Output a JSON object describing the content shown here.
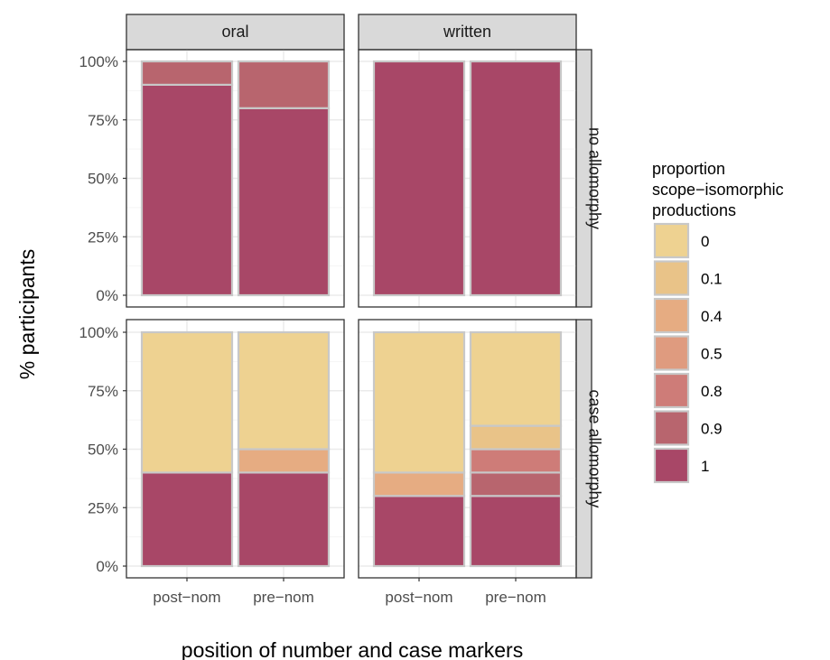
{
  "chart_data": {
    "type": "bar",
    "stacked": true,
    "ylabel": "% participants",
    "xlabel": "position of number and case markers",
    "categories": [
      "post−nom",
      "pre−nom"
    ],
    "y_ticks": [
      "0%",
      "25%",
      "50%",
      "75%",
      "100%"
    ],
    "ylim": [
      0,
      1
    ],
    "column_facets": [
      "oral",
      "written"
    ],
    "row_facets": [
      "no allomorphy",
      "case allomorphy"
    ],
    "legend": {
      "title": [
        "proportion",
        "scope−isomorphic",
        "productions"
      ],
      "position": "right",
      "entries": [
        {
          "label": "0",
          "color": "#EDD08C"
        },
        {
          "label": "0.1",
          "color": "#E8C183"
        },
        {
          "label": "0.4",
          "color": "#E5A97D"
        },
        {
          "label": "0.5",
          "color": "#DE977A"
        },
        {
          "label": "0.8",
          "color": "#CC7772"
        },
        {
          "label": "0.9",
          "color": "#B55F68"
        },
        {
          "label": "1",
          "color": "#A43F61"
        }
      ]
    },
    "panels": [
      {
        "row": "no allomorphy",
        "col": "oral",
        "bars": [
          {
            "category": "post−nom",
            "segments": [
              {
                "level": "1",
                "value": 0.9
              },
              {
                "level": "0.9",
                "value": 0.1
              }
            ]
          },
          {
            "category": "pre−nom",
            "segments": [
              {
                "level": "1",
                "value": 0.8
              },
              {
                "level": "0.9",
                "value": 0.2
              }
            ]
          }
        ]
      },
      {
        "row": "no allomorphy",
        "col": "written",
        "bars": [
          {
            "category": "post−nom",
            "segments": [
              {
                "level": "1",
                "value": 1.0
              }
            ]
          },
          {
            "category": "pre−nom",
            "segments": [
              {
                "level": "1",
                "value": 1.0
              }
            ]
          }
        ]
      },
      {
        "row": "case allomorphy",
        "col": "oral",
        "bars": [
          {
            "category": "post−nom",
            "segments": [
              {
                "level": "1",
                "value": 0.4
              },
              {
                "level": "0",
                "value": 0.6
              }
            ]
          },
          {
            "category": "pre−nom",
            "segments": [
              {
                "level": "1",
                "value": 0.4
              },
              {
                "level": "0.4",
                "value": 0.1
              },
              {
                "level": "0",
                "value": 0.5
              }
            ]
          }
        ]
      },
      {
        "row": "case allomorphy",
        "col": "written",
        "bars": [
          {
            "category": "post−nom",
            "segments": [
              {
                "level": "1",
                "value": 0.3
              },
              {
                "level": "0.4",
                "value": 0.1
              },
              {
                "level": "0",
                "value": 0.6
              }
            ]
          },
          {
            "category": "pre−nom",
            "segments": [
              {
                "level": "1",
                "value": 0.3
              },
              {
                "level": "0.9",
                "value": 0.1
              },
              {
                "level": "0.8",
                "value": 0.1
              },
              {
                "level": "0.1",
                "value": 0.1
              },
              {
                "level": "0",
                "value": 0.4
              }
            ]
          }
        ]
      }
    ],
    "grid": true,
    "colors": {
      "strip_fill": "#D9D9D9",
      "panel_border": "#333333",
      "bar_outline": "#C8C8C8",
      "grid_major": "#EBEBEB",
      "grid_minor": "#F5F5F5"
    }
  }
}
